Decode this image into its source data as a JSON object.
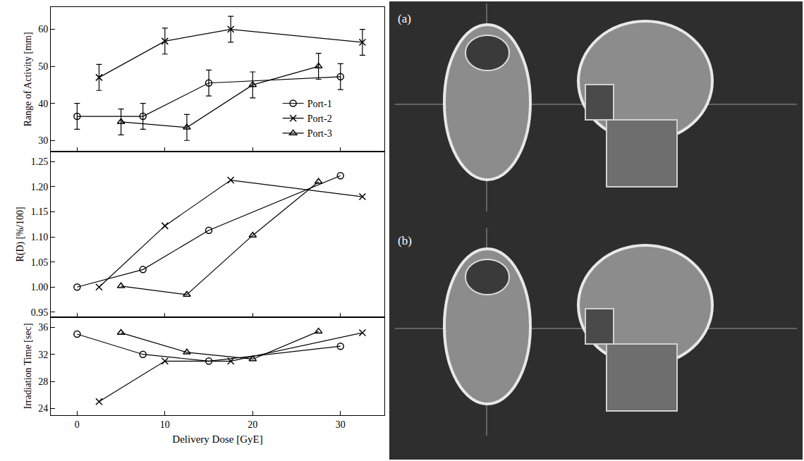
{
  "chart_data": [
    {
      "type": "scatter",
      "ylabel": "Range of Activity [mm]",
      "xlim": [
        -3,
        35
      ],
      "xticks": [
        0,
        10,
        20,
        30
      ],
      "ylim": [
        27,
        66
      ],
      "yticks": [
        30,
        40,
        50,
        60
      ],
      "tick_labels": "y",
      "legend": "right",
      "series": [
        {
          "name": "Port-1",
          "color": "#000000",
          "marker": "circle",
          "line_style": "solid",
          "x": [
            0,
            7.5,
            15,
            30
          ],
          "values": [
            36.5,
            36.5,
            45.5,
            47.2
          ],
          "error": [
            3.5,
            3.5,
            3.5,
            3.5
          ]
        },
        {
          "name": "Port-2",
          "color": "#000000",
          "marker": "x",
          "line_style": "solid",
          "x": [
            2.5,
            10,
            17.5,
            32.5
          ],
          "values": [
            47,
            56.8,
            60,
            56.5
          ],
          "error": [
            3.5,
            3.5,
            3.5,
            3.5
          ]
        },
        {
          "name": "Port-3",
          "color": "#000000",
          "marker": "triangle",
          "line_style": "solid",
          "x": [
            5,
            12.5,
            20,
            27.5
          ],
          "values": [
            35,
            33.5,
            45,
            50
          ],
          "error": [
            3.5,
            3.5,
            3.5,
            3.5
          ]
        }
      ]
    },
    {
      "type": "scatter",
      "ylabel": "R(D) [%/100]",
      "xlim": [
        -3,
        35
      ],
      "xticks": [
        0,
        10,
        20,
        30
      ],
      "ylim": [
        0.94,
        1.27
      ],
      "yticks": [
        0.95,
        {
          "value": 1.0,
          "label": "1.00"
        },
        1.05,
        {
          "value": 1.1,
          "label": "1.10"
        },
        1.15,
        {
          "value": 1.2,
          "label": "1.20"
        },
        1.25
      ],
      "tick_labels": "y",
      "series": [
        {
          "name": "Port-1",
          "color": "#000000",
          "marker": "circle",
          "line_style": "solid",
          "x": [
            0,
            7.5,
            15,
            30
          ],
          "values": [
            1.0,
            1.035,
            1.113,
            1.222
          ]
        },
        {
          "name": "Port-2",
          "color": "#000000",
          "marker": "x",
          "line_style": "solid",
          "x": [
            2.5,
            10,
            17.5,
            32.5
          ],
          "values": [
            1.0,
            1.122,
            1.213,
            1.18
          ]
        },
        {
          "name": "Port-3",
          "color": "#000000",
          "marker": "triangle",
          "line_style": "solid",
          "x": [
            5,
            12.5,
            20,
            27.5
          ],
          "values": [
            1.002,
            0.985,
            1.103,
            1.21
          ]
        }
      ]
    },
    {
      "type": "scatter",
      "ylabel": "Irradiation Time [sec]",
      "xlabel": "Delivery Dose [GyE]",
      "xlim": [
        -3,
        35
      ],
      "xticks": [
        0,
        10,
        20,
        30
      ],
      "ylim": [
        23,
        37.5
      ],
      "yticks": [
        24,
        28,
        32,
        36
      ],
      "series": [
        {
          "name": "Port-1",
          "color": "#000000",
          "marker": "circle",
          "line_style": "solid",
          "x": [
            0,
            7.5,
            15,
            30
          ],
          "values": [
            35,
            32,
            31,
            33.2
          ]
        },
        {
          "name": "Port-2",
          "color": "#000000",
          "marker": "x",
          "line_style": "solid",
          "x": [
            2.5,
            10,
            17.5,
            32.5
          ],
          "values": [
            25,
            31,
            31,
            35.2
          ]
        },
        {
          "name": "Port-3",
          "color": "#000000",
          "marker": "triangle",
          "line_style": "solid",
          "x": [
            5,
            12.5,
            20,
            27.5
          ],
          "values": [
            35.2,
            32.3,
            31.3,
            35.4
          ]
        }
      ]
    }
  ],
  "images": [
    {
      "label": "(a)"
    },
    {
      "label": "(b)"
    }
  ]
}
